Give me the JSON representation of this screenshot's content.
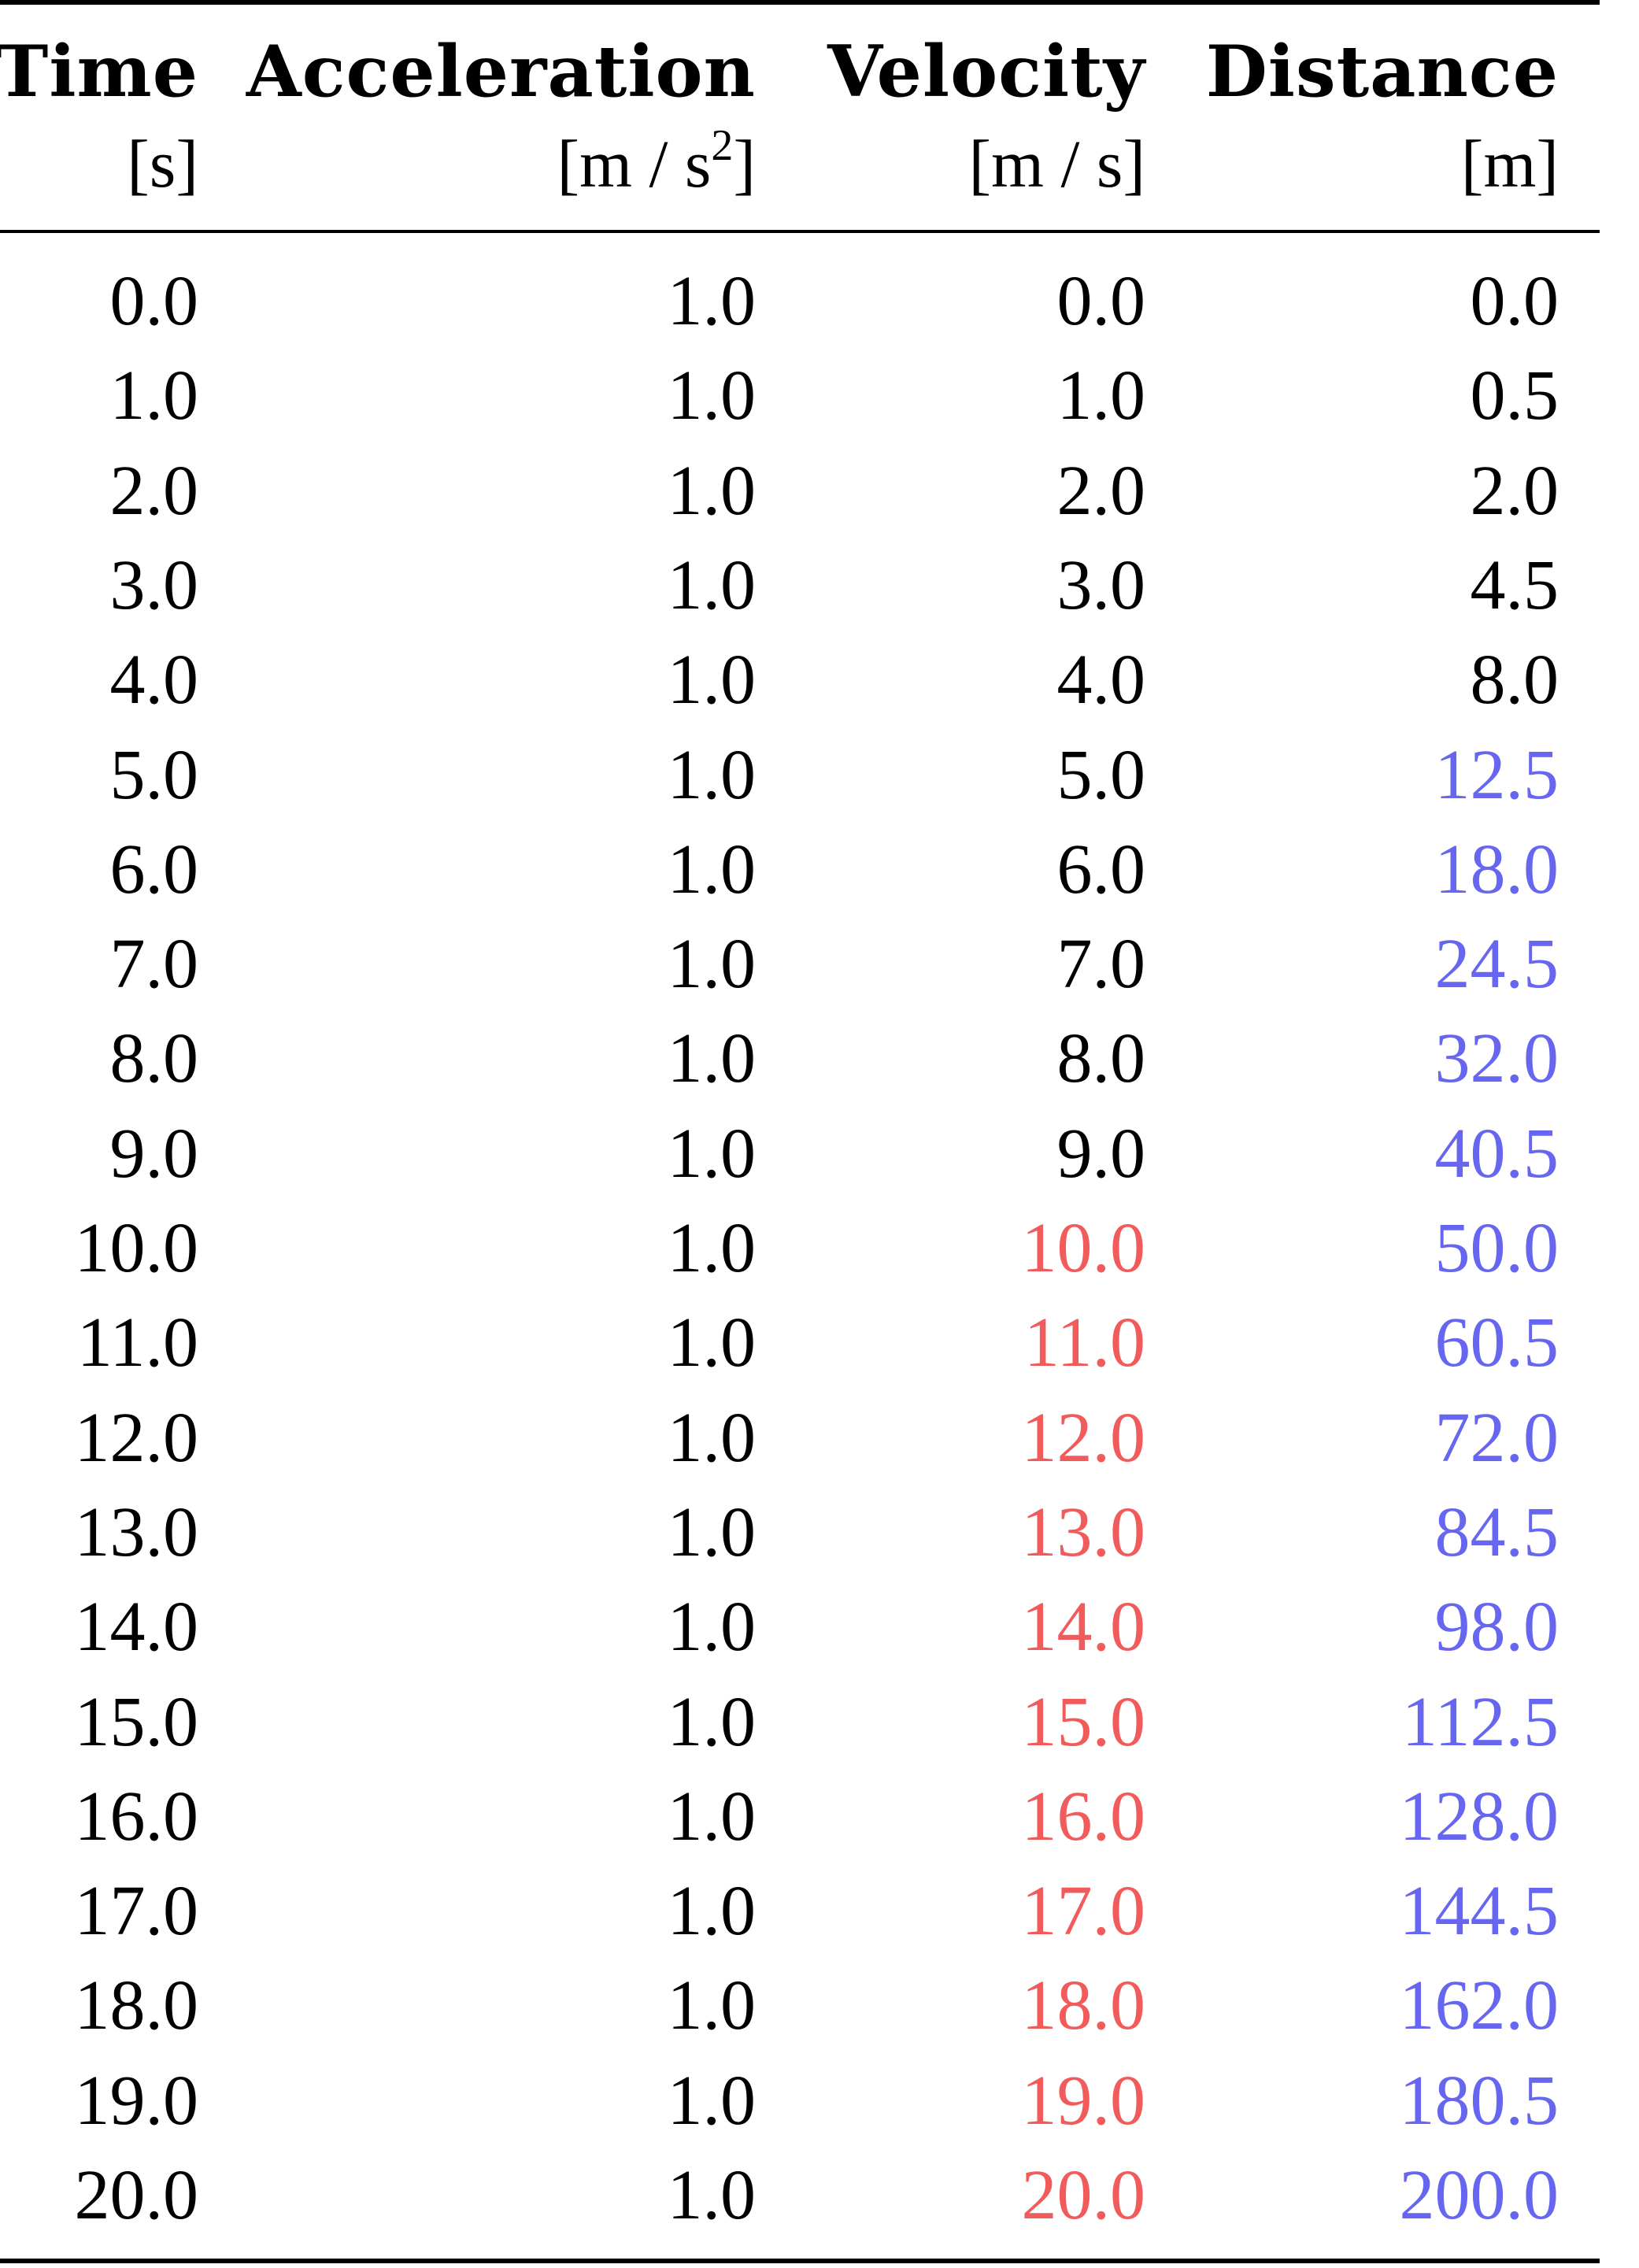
{
  "table": {
    "columns": [
      {
        "title": "Time",
        "unit": "[s]"
      },
      {
        "title": "Acceleration",
        "unit_pre": "[m / s",
        "unit_sup": "2",
        "unit_post": "]"
      },
      {
        "title": "Velocity",
        "unit": "[m / s]"
      },
      {
        "title": "Distance",
        "unit": "[m]"
      }
    ],
    "colors": {
      "default": "#000000",
      "velocity_highlight": "#f25b5b",
      "distance_highlight": "#6666f0"
    },
    "rows": [
      {
        "time": "0.0",
        "acc": "1.0",
        "vel": "0.0",
        "vel_color": "black",
        "dist": "0.0",
        "dist_color": "black"
      },
      {
        "time": "1.0",
        "acc": "1.0",
        "vel": "1.0",
        "vel_color": "black",
        "dist": "0.5",
        "dist_color": "black"
      },
      {
        "time": "2.0",
        "acc": "1.0",
        "vel": "2.0",
        "vel_color": "black",
        "dist": "2.0",
        "dist_color": "black"
      },
      {
        "time": "3.0",
        "acc": "1.0",
        "vel": "3.0",
        "vel_color": "black",
        "dist": "4.5",
        "dist_color": "black"
      },
      {
        "time": "4.0",
        "acc": "1.0",
        "vel": "4.0",
        "vel_color": "black",
        "dist": "8.0",
        "dist_color": "black"
      },
      {
        "time": "5.0",
        "acc": "1.0",
        "vel": "5.0",
        "vel_color": "black",
        "dist": "12.5",
        "dist_color": "blue"
      },
      {
        "time": "6.0",
        "acc": "1.0",
        "vel": "6.0",
        "vel_color": "black",
        "dist": "18.0",
        "dist_color": "blue"
      },
      {
        "time": "7.0",
        "acc": "1.0",
        "vel": "7.0",
        "vel_color": "black",
        "dist": "24.5",
        "dist_color": "blue"
      },
      {
        "time": "8.0",
        "acc": "1.0",
        "vel": "8.0",
        "vel_color": "black",
        "dist": "32.0",
        "dist_color": "blue"
      },
      {
        "time": "9.0",
        "acc": "1.0",
        "vel": "9.0",
        "vel_color": "black",
        "dist": "40.5",
        "dist_color": "blue"
      },
      {
        "time": "10.0",
        "acc": "1.0",
        "vel": "10.0",
        "vel_color": "red",
        "dist": "50.0",
        "dist_color": "blue"
      },
      {
        "time": "11.0",
        "acc": "1.0",
        "vel": "11.0",
        "vel_color": "red",
        "dist": "60.5",
        "dist_color": "blue"
      },
      {
        "time": "12.0",
        "acc": "1.0",
        "vel": "12.0",
        "vel_color": "red",
        "dist": "72.0",
        "dist_color": "blue"
      },
      {
        "time": "13.0",
        "acc": "1.0",
        "vel": "13.0",
        "vel_color": "red",
        "dist": "84.5",
        "dist_color": "blue"
      },
      {
        "time": "14.0",
        "acc": "1.0",
        "vel": "14.0",
        "vel_color": "red",
        "dist": "98.0",
        "dist_color": "blue"
      },
      {
        "time": "15.0",
        "acc": "1.0",
        "vel": "15.0",
        "vel_color": "red",
        "dist": "112.5",
        "dist_color": "blue"
      },
      {
        "time": "16.0",
        "acc": "1.0",
        "vel": "16.0",
        "vel_color": "red",
        "dist": "128.0",
        "dist_color": "blue"
      },
      {
        "time": "17.0",
        "acc": "1.0",
        "vel": "17.0",
        "vel_color": "red",
        "dist": "144.5",
        "dist_color": "blue"
      },
      {
        "time": "18.0",
        "acc": "1.0",
        "vel": "18.0",
        "vel_color": "red",
        "dist": "162.0",
        "dist_color": "blue"
      },
      {
        "time": "19.0",
        "acc": "1.0",
        "vel": "19.0",
        "vel_color": "red",
        "dist": "180.5",
        "dist_color": "blue"
      },
      {
        "time": "20.0",
        "acc": "1.0",
        "vel": "20.0",
        "vel_color": "red",
        "dist": "200.0",
        "dist_color": "blue"
      }
    ]
  }
}
